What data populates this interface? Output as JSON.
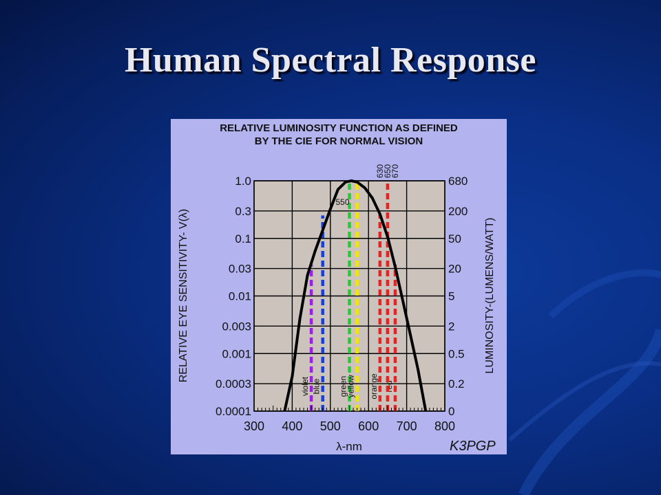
{
  "slide": {
    "title": "Human Spectral Response"
  },
  "colors": {
    "background": "#0a2f86",
    "panel": "#b3b3f0",
    "plot_area": "#ccc3bd",
    "title_text": "#e8e8f0"
  },
  "chart_data": {
    "type": "line",
    "title": "RELATIVE LUMINOSITY FUNCTION AS DEFINED BY THE CIE FOR NORMAL VISION",
    "title_lines": [
      "RELATIVE LUMINOSITY FUNCTION AS DEFINED",
      "BY THE CIE FOR NORMAL VISION"
    ],
    "xlabel": "λ-nm",
    "ylabel": "RELATIVE EYE SENSITIVITY- V(λ)",
    "y2label": "LUMINOSITY-(LUMENS/WATT)",
    "credit": "K3PGP",
    "xlim": [
      300,
      800
    ],
    "ylim": [
      0.0001,
      1.0
    ],
    "yscale": "log",
    "grid": true,
    "x_ticks": [
      300,
      400,
      500,
      600,
      700,
      800
    ],
    "x_tick_labels": [
      "300",
      "400",
      "500",
      "600",
      "700",
      "800"
    ],
    "y_ticks": [
      1.0,
      0.3,
      0.1,
      0.03,
      0.01,
      0.003,
      0.001,
      0.0003,
      0.0001
    ],
    "y_tick_labels": [
      "1.0",
      "0.3",
      "0.1",
      "0.03",
      "0.01",
      "0.003",
      "0.001",
      "0.0003",
      "0.0001"
    ],
    "y2_tick_labels": [
      "680",
      "200",
      "50",
      "20",
      "5",
      "2",
      "0.5",
      "0.2",
      "0"
    ],
    "series": [
      {
        "color": "#000000",
        "x": [
          380,
          400,
          420,
          440,
          460,
          480,
          500,
          520,
          540,
          555,
          570,
          590,
          610,
          630,
          650,
          670,
          690,
          710,
          730,
          750
        ],
        "y": [
          0.0001,
          0.0004,
          0.004,
          0.023,
          0.06,
          0.139,
          0.323,
          0.71,
          0.954,
          1.0,
          0.952,
          0.757,
          0.503,
          0.265,
          0.107,
          0.032,
          0.0082,
          0.0021,
          0.00052,
          0.0001
        ]
      }
    ],
    "color_bands": [
      {
        "label": "violet",
        "x": 450,
        "top": 0.035,
        "color": "#9b1fe6"
      },
      {
        "label": "blue",
        "x": 480,
        "top": 0.25,
        "color": "#1a3fd9"
      },
      {
        "label": "green",
        "x": 550,
        "top": 1.0,
        "color": "#22cc33"
      },
      {
        "label": "yellow",
        "x": 570,
        "top": 1.0,
        "color": "#f2e600"
      },
      {
        "label": "orange",
        "x": 630,
        "top": 0.26,
        "color": "#e82323"
      },
      {
        "label": "red",
        "x": 670,
        "top": 0.035,
        "color": "#e82323"
      },
      {
        "label": "",
        "x": 650,
        "top": 1.0,
        "color": "#e82323"
      }
    ],
    "annotations": [
      {
        "text": "550",
        "x": 550
      },
      {
        "text": "630",
        "x": 630
      },
      {
        "text": "650",
        "x": 650
      },
      {
        "text": "670",
        "x": 670
      }
    ]
  }
}
